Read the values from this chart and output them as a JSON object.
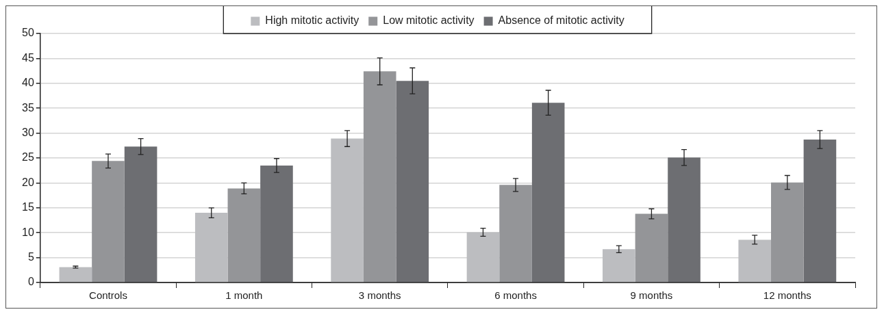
{
  "chart_data": {
    "type": "bar",
    "categories": [
      "Controls",
      "1 month",
      "3 months",
      "6 months",
      "9 months",
      "12 months"
    ],
    "series": [
      {
        "name": "High mitotic activity",
        "color": "#bcbdc0",
        "values": [
          3.1,
          14.0,
          28.9,
          10.1,
          6.7,
          8.6
        ],
        "errors": [
          0.2,
          1.0,
          1.6,
          0.8,
          0.7,
          0.9
        ]
      },
      {
        "name": "Low mitotic activity",
        "color": "#949598",
        "values": [
          24.4,
          18.9,
          42.4,
          19.6,
          13.8,
          20.1
        ],
        "errors": [
          1.4,
          1.1,
          2.7,
          1.3,
          1.0,
          1.4
        ]
      },
      {
        "name": "Absence of mitotic activity",
        "color": "#6d6e72",
        "values": [
          27.3,
          23.5,
          40.5,
          36.1,
          25.1,
          28.7
        ],
        "errors": [
          1.6,
          1.4,
          2.6,
          2.5,
          1.6,
          1.8
        ]
      }
    ],
    "ylim": [
      0,
      50
    ],
    "yticks": [
      0,
      5,
      10,
      15,
      20,
      25,
      30,
      35,
      40,
      45,
      50
    ],
    "grid": "y",
    "legend": "top"
  }
}
